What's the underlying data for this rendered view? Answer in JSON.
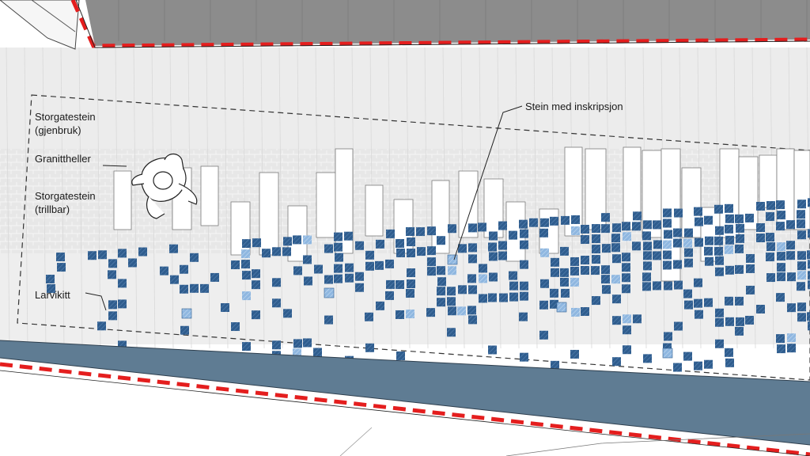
{
  "labels": {
    "storgatestein_reuse_line1": "Storgatestein",
    "storgatestein_reuse_line2": "(gjenbruk)",
    "granite_slabs": "Granittheller",
    "storgatestein_rollable_line1": "Storgatestein",
    "storgatestein_rollable_line2": "(trillbar)",
    "larvikite": "Larvikitt",
    "inscribed_stone": "Stein med inskripsjon"
  },
  "colors": {
    "larvikite_blue": "#2f5d8e",
    "inscribed_light_blue": "#8fb7e0",
    "curb_blue_gray": "#5f7c93",
    "roof_gray": "#8c8c8c",
    "property_line_red": "#e41e1e",
    "granite_slab_white": "#ffffff",
    "cobble_light_gray": "#e6e6e6"
  },
  "icons": {
    "pedestrian": "person-walking-top-view-icon"
  }
}
